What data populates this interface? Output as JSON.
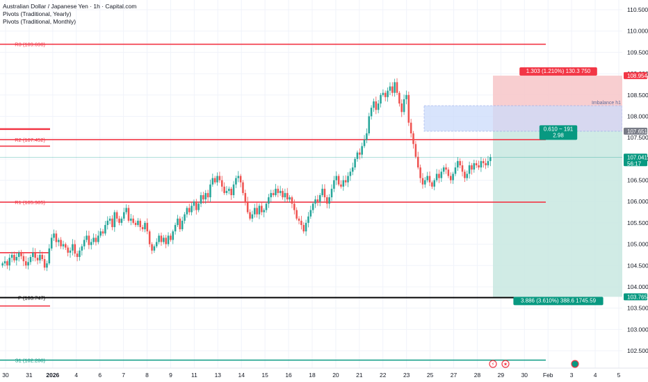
{
  "header": {
    "title": "Australian Dollar / Japanese Yen · 1h · Capital.com",
    "indicators": [
      "Pivots (Traditional, Yearly)",
      "Pivots (Traditional, Monthly)"
    ]
  },
  "colors": {
    "up": "#26a69a",
    "down": "#ef5350",
    "pivot_red": "#f23645",
    "pivot_black": "#000000",
    "pivot_green": "#089981",
    "stop_zone": "#f7c6c8",
    "target_zone": "#c8e8e0",
    "imbalance": "#ccdcfb",
    "imbalance_border": "#8fa8e8"
  },
  "price_axis": {
    "ticks": [
      "110.500",
      "110.000",
      "109.500",
      "109.000",
      "108.500",
      "108.000",
      "107.500",
      "107.000",
      "106.500",
      "106.000",
      "105.500",
      "105.000",
      "104.500",
      "104.000",
      "103.500",
      "103.000",
      "102.500"
    ],
    "tags": [
      {
        "text": "108.954",
        "price": 108.954,
        "color": "#f23645"
      },
      {
        "text": "107.651",
        "price": 107.651,
        "color": "#787b86"
      },
      {
        "text": "107.041",
        "text2": "56:17",
        "price": 107.041,
        "color": "#089981"
      },
      {
        "text": "103.765",
        "price": 103.765,
        "color": "#089981"
      }
    ]
  },
  "time_axis": {
    "labels": [
      {
        "text": "30",
        "bold": false
      },
      {
        "text": "31",
        "bold": false
      },
      {
        "text": "2026",
        "bold": true
      },
      {
        "text": "4",
        "bold": false
      },
      {
        "text": "6",
        "bold": false
      },
      {
        "text": "7",
        "bold": false
      },
      {
        "text": "8",
        "bold": false
      },
      {
        "text": "9",
        "bold": false
      },
      {
        "text": "11",
        "bold": false
      },
      {
        "text": "13",
        "bold": false
      },
      {
        "text": "14",
        "bold": false
      },
      {
        "text": "15",
        "bold": false
      },
      {
        "text": "16",
        "bold": false
      },
      {
        "text": "18",
        "bold": false
      },
      {
        "text": "20",
        "bold": false
      },
      {
        "text": "21",
        "bold": false
      },
      {
        "text": "22",
        "bold": false
      },
      {
        "text": "23",
        "bold": false
      },
      {
        "text": "25",
        "bold": false
      },
      {
        "text": "27",
        "bold": false
      },
      {
        "text": "28",
        "bold": false
      },
      {
        "text": "29",
        "bold": false
      },
      {
        "text": "30",
        "bold": false
      },
      {
        "text": "Feb",
        "bold": false
      },
      {
        "text": "3",
        "bold": false
      },
      {
        "text": "4",
        "bold": false
      },
      {
        "text": "5",
        "bold": false
      }
    ]
  },
  "pivots": [
    {
      "label": "R3 (109.690)",
      "price": 109.69,
      "color": "#f23645"
    },
    {
      "label": "R2 (107.452)",
      "price": 107.452,
      "color": "#f23645"
    },
    {
      "label": "R1 (105.985)",
      "price": 105.985,
      "color": "#f23645"
    },
    {
      "label": "P (103.747)",
      "price": 103.747,
      "color": "#000000"
    },
    {
      "label": "S1 (102.280)",
      "price": 102.28,
      "color": "#089981"
    }
  ],
  "position_tool": {
    "type": "short",
    "entry": 107.651,
    "stop": 108.954,
    "target": 103.765,
    "stop_label": "1.303 (1.210%) 130.3 750",
    "center_label": "0.610 ~ 191",
    "center_label_2": "2.98",
    "target_label": "3.886 (3.610%) 388.6 1745.59"
  },
  "imbalance": {
    "label": "Imbalance h1",
    "top": 108.25,
    "bottom": 107.65
  },
  "current_price": 107.041,
  "chart_data": {
    "type": "candlestick",
    "title": "Australian Dollar / Japanese Yen · 1h · Capital.com",
    "xlabel": "",
    "ylabel": "",
    "ylim": [
      102.0,
      110.75
    ],
    "grid": true,
    "closes": [
      104.55,
      104.6,
      104.5,
      104.68,
      104.75,
      104.62,
      104.7,
      104.8,
      104.72,
      104.6,
      104.5,
      104.58,
      104.7,
      104.8,
      104.68,
      104.62,
      104.75,
      104.65,
      104.45,
      104.55,
      104.9,
      105.15,
      105.25,
      105.05,
      105.1,
      104.95,
      105.0,
      104.92,
      104.8,
      104.85,
      105.0,
      104.78,
      104.7,
      104.85,
      104.95,
      105.1,
      105.2,
      104.98,
      105.05,
      105.15,
      105.05,
      105.2,
      105.3,
      105.25,
      105.45,
      105.55,
      105.6,
      105.4,
      105.75,
      105.6,
      105.5,
      105.6,
      105.75,
      105.85,
      105.55,
      105.6,
      105.5,
      105.45,
      105.55,
      105.4,
      105.35,
      105.5,
      105.3,
      105.0,
      104.85,
      104.95,
      105.05,
      105.2,
      105.05,
      105.15,
      105.0,
      105.2,
      105.1,
      105.3,
      105.45,
      105.6,
      105.35,
      105.55,
      105.7,
      105.85,
      105.75,
      105.9,
      106.0,
      105.8,
      105.95,
      106.15,
      106.05,
      106.2,
      106.1,
      106.4,
      106.55,
      106.45,
      106.6,
      106.5,
      106.35,
      106.2,
      106.25,
      106.3,
      106.15,
      106.4,
      106.55,
      106.6,
      106.45,
      106.2,
      106.0,
      105.75,
      105.6,
      105.7,
      105.85,
      105.7,
      105.9,
      105.75,
      105.8,
      105.95,
      106.1,
      106.2,
      106.15,
      106.3,
      106.2,
      106.25,
      106.1,
      106.2,
      106.05,
      106.1,
      105.95,
      105.8,
      105.6,
      105.55,
      105.45,
      105.3,
      105.5,
      105.65,
      105.8,
      105.95,
      106.05,
      106.0,
      106.15,
      106.3,
      106.1,
      105.95,
      106.1,
      106.3,
      106.5,
      106.6,
      106.4,
      106.35,
      106.5,
      106.45,
      106.6,
      106.7,
      106.8,
      107.0,
      107.15,
      107.1,
      107.3,
      107.45,
      107.6,
      108.0,
      108.2,
      108.35,
      108.15,
      108.3,
      108.5,
      108.55,
      108.45,
      108.6,
      108.7,
      108.55,
      108.8,
      108.55,
      108.3,
      108.1,
      108.4,
      108.5,
      107.85,
      107.6,
      107.35,
      107.05,
      106.8,
      106.55,
      106.4,
      106.5,
      106.6,
      106.45,
      106.35,
      106.5,
      106.65,
      106.55,
      106.7,
      106.8,
      106.75,
      106.6,
      106.5,
      106.65,
      106.8,
      106.95,
      106.85,
      106.7,
      106.55,
      106.65,
      106.85,
      106.75,
      106.9,
      106.85,
      106.8,
      106.95,
      106.9,
      106.85,
      106.95,
      107.04
    ]
  }
}
